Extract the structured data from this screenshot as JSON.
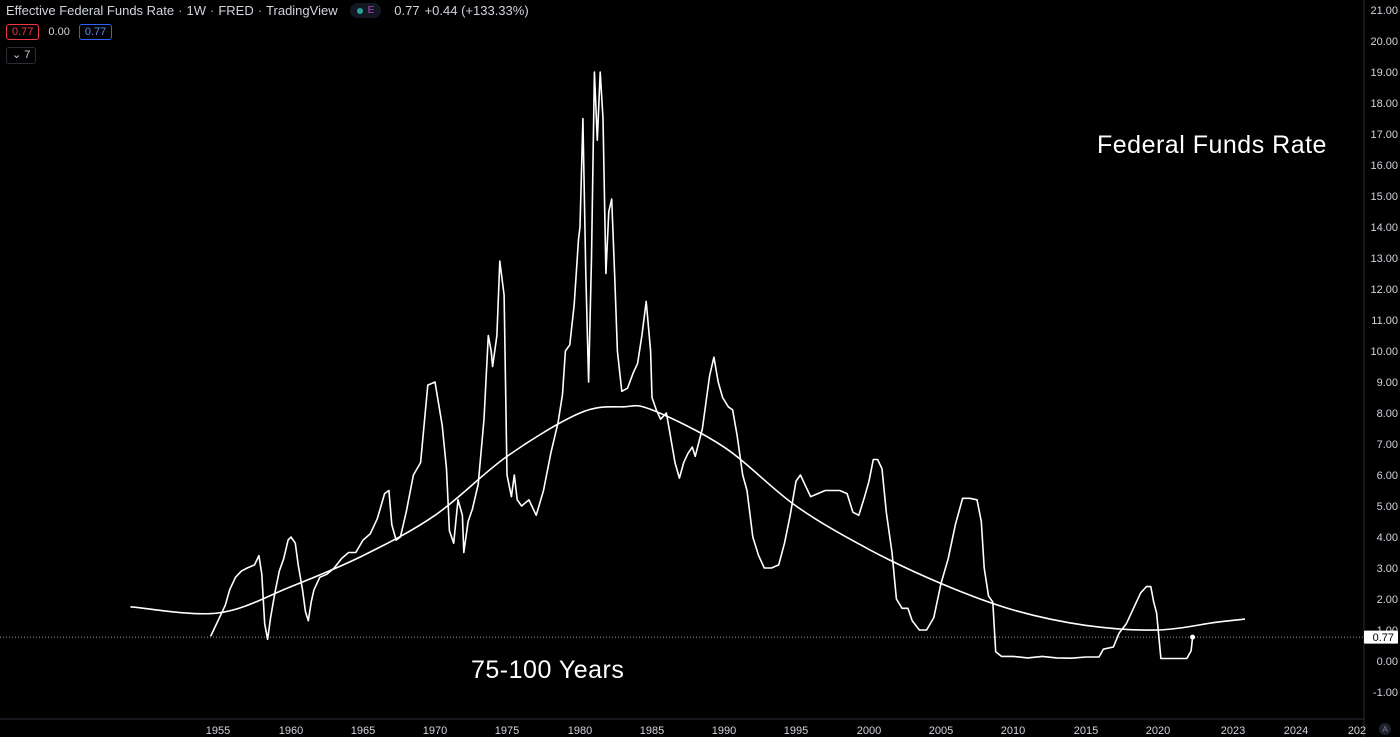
{
  "legend": {
    "title": "Effective Federal Funds Rate",
    "interval": "1W",
    "source": "FRED",
    "platform": "TradingView",
    "badge": "E",
    "last": "0.77",
    "change": "+0.44 (+133.33%)",
    "sell": "0.77",
    "spread": "0.00",
    "buy": "0.77",
    "indicators_toggle": "7"
  },
  "annotations": {
    "title": "Federal Funds Rate",
    "cycle": "75-100 Years"
  },
  "price_axis_label": "0.77",
  "colors": {
    "background": "#000000",
    "line": "#ffffff",
    "axis_text": "#d1d4dc",
    "sell": "#f23645",
    "buy": "#2962ff"
  },
  "chart_data": {
    "type": "line",
    "ylim": [
      -1.5,
      21.3
    ],
    "y_ticks": [
      "21.00",
      "20.00",
      "19.00",
      "18.00",
      "17.00",
      "16.00",
      "15.00",
      "14.00",
      "13.00",
      "12.00",
      "11.00",
      "10.00",
      "9.00",
      "8.00",
      "7.00",
      "6.00",
      "5.00",
      "4.00",
      "3.00",
      "2.00",
      "1.00",
      "0.00",
      "-1.00"
    ],
    "x_ticks": [
      "1955",
      "1960",
      "1965",
      "1970",
      "1975",
      "1980",
      "1985",
      "1990",
      "1995",
      "2000",
      "2005",
      "2010",
      "2015",
      "2020",
      "2023",
      "2024",
      "202"
    ],
    "last_value": 0.77,
    "series": [
      {
        "points": [
          [
            1954.5,
            0.8
          ],
          [
            1954.8,
            1.1
          ],
          [
            1955.0,
            1.3
          ],
          [
            1955.5,
            1.8
          ],
          [
            1955.8,
            2.3
          ],
          [
            1956.2,
            2.7
          ],
          [
            1956.6,
            2.9
          ],
          [
            1957.0,
            3.0
          ],
          [
            1957.5,
            3.1
          ],
          [
            1957.8,
            3.4
          ],
          [
            1958.0,
            2.8
          ],
          [
            1958.2,
            1.2
          ],
          [
            1958.4,
            0.7
          ],
          [
            1958.6,
            1.4
          ],
          [
            1958.9,
            2.2
          ],
          [
            1959.2,
            2.9
          ],
          [
            1959.5,
            3.3
          ],
          [
            1959.8,
            3.9
          ],
          [
            1960.0,
            4.0
          ],
          [
            1960.3,
            3.8
          ],
          [
            1960.5,
            3.1
          ],
          [
            1960.8,
            2.3
          ],
          [
            1961.0,
            1.6
          ],
          [
            1961.2,
            1.3
          ],
          [
            1961.4,
            1.9
          ],
          [
            1961.6,
            2.3
          ],
          [
            1962.0,
            2.7
          ],
          [
            1962.5,
            2.8
          ],
          [
            1963.0,
            3.0
          ],
          [
            1963.5,
            3.3
          ],
          [
            1964.0,
            3.5
          ],
          [
            1964.5,
            3.5
          ],
          [
            1965.0,
            3.9
          ],
          [
            1965.5,
            4.1
          ],
          [
            1966.0,
            4.6
          ],
          [
            1966.5,
            5.4
          ],
          [
            1966.8,
            5.5
          ],
          [
            1967.0,
            4.4
          ],
          [
            1967.3,
            3.9
          ],
          [
            1967.6,
            4.0
          ],
          [
            1968.0,
            4.8
          ],
          [
            1968.5,
            6.0
          ],
          [
            1969.0,
            6.4
          ],
          [
            1969.5,
            8.9
          ],
          [
            1970.0,
            9.0
          ],
          [
            1970.5,
            7.6
          ],
          [
            1970.8,
            6.2
          ],
          [
            1971.0,
            4.2
          ],
          [
            1971.3,
            3.8
          ],
          [
            1971.6,
            5.2
          ],
          [
            1971.9,
            4.7
          ],
          [
            1972.0,
            3.5
          ],
          [
            1972.3,
            4.5
          ],
          [
            1972.6,
            4.9
          ],
          [
            1973.0,
            5.7
          ],
          [
            1973.4,
            7.8
          ],
          [
            1973.7,
            10.5
          ],
          [
            1973.9,
            10.0
          ],
          [
            1974.0,
            9.5
          ],
          [
            1974.3,
            10.5
          ],
          [
            1974.5,
            12.9
          ],
          [
            1974.8,
            11.8
          ],
          [
            1975.0,
            6.0
          ],
          [
            1975.3,
            5.3
          ],
          [
            1975.5,
            6.0
          ],
          [
            1975.7,
            5.2
          ],
          [
            1976.0,
            5.0
          ],
          [
            1976.5,
            5.2
          ],
          [
            1977.0,
            4.7
          ],
          [
            1977.5,
            5.5
          ],
          [
            1978.0,
            6.7
          ],
          [
            1978.5,
            7.7
          ],
          [
            1978.8,
            8.6
          ],
          [
            1979.0,
            10.0
          ],
          [
            1979.3,
            10.2
          ],
          [
            1979.6,
            11.5
          ],
          [
            1979.9,
            13.6
          ],
          [
            1980.0,
            14.0
          ],
          [
            1980.2,
            17.5
          ],
          [
            1980.4,
            12.5
          ],
          [
            1980.6,
            9.0
          ],
          [
            1980.8,
            13.0
          ],
          [
            1981.0,
            19.0
          ],
          [
            1981.2,
            16.8
          ],
          [
            1981.4,
            19.0
          ],
          [
            1981.6,
            17.5
          ],
          [
            1981.8,
            12.5
          ],
          [
            1982.0,
            14.5
          ],
          [
            1982.2,
            14.9
          ],
          [
            1982.4,
            12.5
          ],
          [
            1982.6,
            10.0
          ],
          [
            1982.9,
            8.7
          ],
          [
            1983.3,
            8.8
          ],
          [
            1983.7,
            9.3
          ],
          [
            1984.0,
            9.6
          ],
          [
            1984.3,
            10.5
          ],
          [
            1984.6,
            11.6
          ],
          [
            1984.9,
            10.0
          ],
          [
            1985.0,
            8.5
          ],
          [
            1985.3,
            8.1
          ],
          [
            1985.6,
            7.8
          ],
          [
            1986.0,
            8.0
          ],
          [
            1986.3,
            7.2
          ],
          [
            1986.6,
            6.4
          ],
          [
            1986.9,
            5.9
          ],
          [
            1987.2,
            6.4
          ],
          [
            1987.5,
            6.7
          ],
          [
            1987.8,
            6.9
          ],
          [
            1988.0,
            6.6
          ],
          [
            1988.5,
            7.5
          ],
          [
            1989.0,
            9.2
          ],
          [
            1989.3,
            9.8
          ],
          [
            1989.6,
            9.0
          ],
          [
            1989.9,
            8.5
          ],
          [
            1990.3,
            8.2
          ],
          [
            1990.6,
            8.1
          ],
          [
            1990.9,
            7.3
          ],
          [
            1991.3,
            6.0
          ],
          [
            1991.6,
            5.5
          ],
          [
            1992.0,
            4.0
          ],
          [
            1992.4,
            3.4
          ],
          [
            1992.8,
            3.0
          ],
          [
            1993.3,
            3.0
          ],
          [
            1993.8,
            3.1
          ],
          [
            1994.2,
            3.8
          ],
          [
            1994.6,
            4.7
          ],
          [
            1995.0,
            5.8
          ],
          [
            1995.3,
            6.0
          ],
          [
            1995.6,
            5.7
          ],
          [
            1996.0,
            5.3
          ],
          [
            1996.5,
            5.4
          ],
          [
            1997.0,
            5.5
          ],
          [
            1997.5,
            5.5
          ],
          [
            1998.0,
            5.5
          ],
          [
            1998.5,
            5.4
          ],
          [
            1998.9,
            4.8
          ],
          [
            1999.3,
            4.7
          ],
          [
            1999.7,
            5.3
          ],
          [
            2000.0,
            5.8
          ],
          [
            2000.3,
            6.5
          ],
          [
            2000.6,
            6.5
          ],
          [
            2000.9,
            6.2
          ],
          [
            2001.2,
            4.8
          ],
          [
            2001.6,
            3.5
          ],
          [
            2001.9,
            2.0
          ],
          [
            2002.3,
            1.7
          ],
          [
            2002.7,
            1.7
          ],
          [
            2003.0,
            1.3
          ],
          [
            2003.5,
            1.0
          ],
          [
            2004.0,
            1.0
          ],
          [
            2004.5,
            1.4
          ],
          [
            2005.0,
            2.5
          ],
          [
            2005.5,
            3.3
          ],
          [
            2006.0,
            4.4
          ],
          [
            2006.5,
            5.25
          ],
          [
            2007.0,
            5.25
          ],
          [
            2007.5,
            5.2
          ],
          [
            2007.8,
            4.5
          ],
          [
            2008.0,
            3.0
          ],
          [
            2008.3,
            2.1
          ],
          [
            2008.6,
            1.9
          ],
          [
            2008.8,
            0.3
          ],
          [
            2009.2,
            0.15
          ],
          [
            2010.0,
            0.15
          ],
          [
            2011.0,
            0.1
          ],
          [
            2012.0,
            0.15
          ],
          [
            2013.0,
            0.1
          ],
          [
            2014.0,
            0.09
          ],
          [
            2015.0,
            0.13
          ],
          [
            2015.9,
            0.13
          ],
          [
            2016.2,
            0.38
          ],
          [
            2016.9,
            0.45
          ],
          [
            2017.3,
            0.9
          ],
          [
            2017.8,
            1.2
          ],
          [
            2018.3,
            1.7
          ],
          [
            2018.8,
            2.2
          ],
          [
            2019.2,
            2.4
          ],
          [
            2019.5,
            2.4
          ],
          [
            2019.7,
            1.9
          ],
          [
            2019.9,
            1.55
          ],
          [
            2020.2,
            0.08
          ],
          [
            2021.0,
            0.08
          ],
          [
            2022.0,
            0.08
          ],
          [
            2022.3,
            0.33
          ],
          [
            2022.4,
            0.77
          ]
        ]
      },
      {
        "points": [
          [
            1949.0,
            1.75
          ],
          [
            1955.0,
            1.55
          ],
          [
            1960.0,
            2.4
          ],
          [
            1965.0,
            3.4
          ],
          [
            1970.0,
            4.7
          ],
          [
            1975.0,
            6.6
          ],
          [
            1980.0,
            8.0
          ],
          [
            1983.0,
            8.2
          ],
          [
            1985.0,
            8.1
          ],
          [
            1990.0,
            6.9
          ],
          [
            1995.0,
            5.0
          ],
          [
            2000.0,
            3.6
          ],
          [
            2005.0,
            2.5
          ],
          [
            2010.0,
            1.65
          ],
          [
            2015.0,
            1.15
          ],
          [
            2020.0,
            1.0
          ],
          [
            2024.0,
            1.25
          ],
          [
            2026.0,
            1.35
          ]
        ]
      }
    ]
  }
}
